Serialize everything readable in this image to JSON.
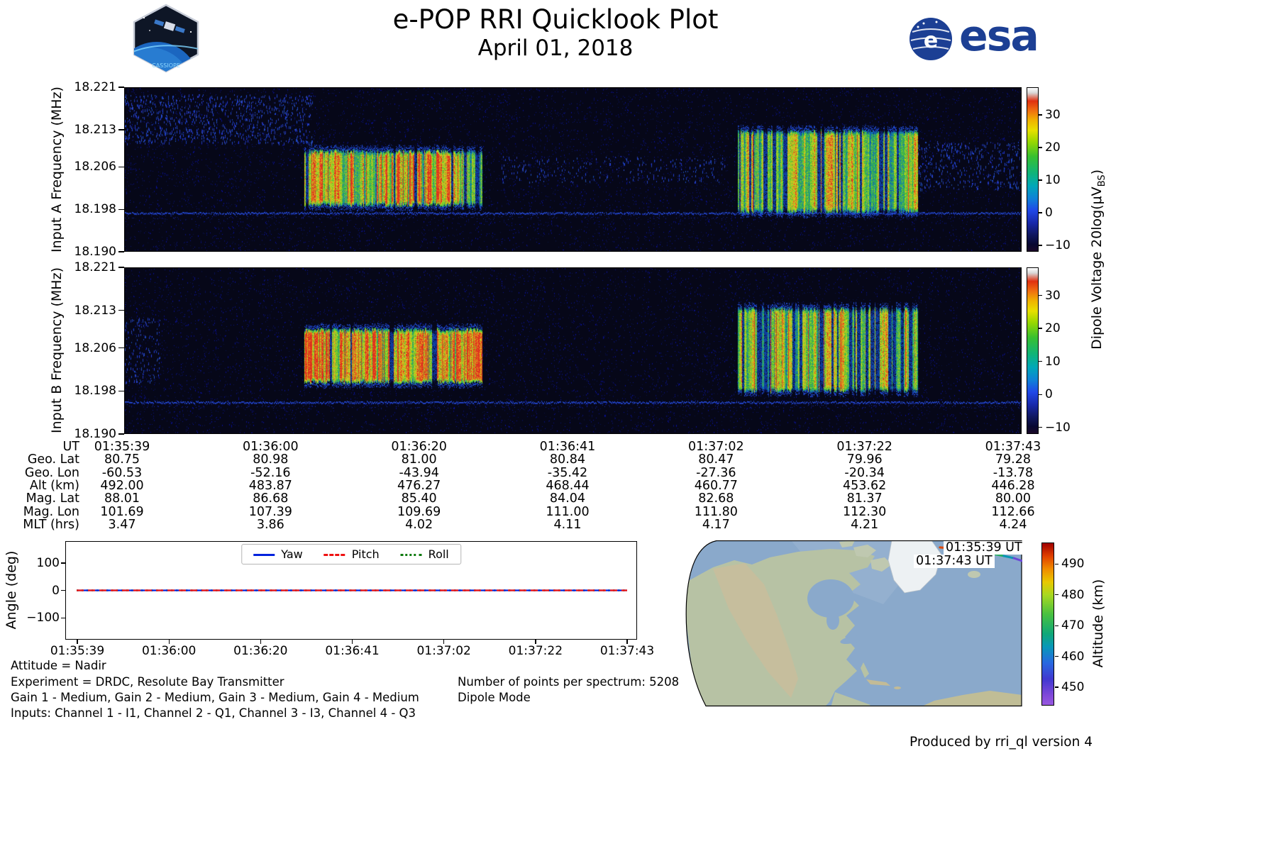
{
  "header": {
    "title": "e-POP RRI Quicklook Plot",
    "date": "April 01, 2018",
    "esa_wordmark": "esa",
    "patch_text": "CASSIOPE"
  },
  "chart_data": [
    {
      "id": "input_a_spectrogram",
      "type": "heatmap",
      "ylabel": "Input A Frequency (MHz)",
      "ylim": [
        18.19,
        18.221
      ],
      "ytick_values": [
        18.221,
        18.213,
        18.206,
        18.198,
        18.19
      ],
      "ytick_labels": [
        "18.221",
        "18.213",
        "18.206",
        "18.198",
        "18.190"
      ],
      "x_start_ut": "01:35:39",
      "x_end_ut": "01:37:43",
      "colorbar": {
        "label_prefix": "Dipole Voltage 20log(μV",
        "label_sub": "BS",
        "label_suffix": ")",
        "tick_values": [
          30,
          20,
          10,
          0,
          -10
        ],
        "tick_labels": [
          "30",
          "20",
          "10",
          "0",
          "−10"
        ],
        "value_range": [
          38.5,
          -12
        ],
        "gradient_stops": [
          [
            0,
            "#ffffff"
          ],
          [
            3,
            "#d8d8d8"
          ],
          [
            8,
            "#e03010"
          ],
          [
            14,
            "#f07010"
          ],
          [
            20,
            "#f0b400"
          ],
          [
            26,
            "#e8e000"
          ],
          [
            33,
            "#98d800"
          ],
          [
            42,
            "#38c030"
          ],
          [
            52,
            "#10b478"
          ],
          [
            60,
            "#00a8b8"
          ],
          [
            68,
            "#1080d8"
          ],
          [
            75,
            "#2048e8"
          ],
          [
            83,
            "#1828a8"
          ],
          [
            90,
            "#101860"
          ],
          [
            96,
            "#080830"
          ],
          [
            100,
            "#1a0828"
          ]
        ]
      },
      "features": {
        "background_db": -9,
        "noise_floor_line_mhz": 18.1972,
        "bursts": [
          {
            "ut": [
              "01:36:07",
              "01:36:30"
            ],
            "x": [
              0.2,
              0.399
            ],
            "f": [
              18.1987,
              18.2089
            ],
            "peak_db": 36,
            "level": 1.0,
            "red_frac": 0.18,
            "gap_frac": 0.12
          },
          {
            "ut": [
              "01:37:06",
              "01:37:30"
            ],
            "x": [
              0.684,
              0.885
            ],
            "f": [
              18.1974,
              18.2127
            ],
            "peak_db": 30,
            "level": 0.9,
            "red_frac": 0.04,
            "gap_frac": 0.3
          }
        ],
        "speckle_regions": [
          {
            "x": [
              0.0,
              0.21
            ],
            "y": [
              0.04,
              0.34
            ],
            "density": 0.1
          },
          {
            "x": [
              0.42,
              0.67
            ],
            "y": [
              0.42,
              0.58
            ],
            "density": 0.04
          },
          {
            "x": [
              0.885,
              1.0
            ],
            "y": [
              0.33,
              0.62
            ],
            "density": 0.08
          }
        ]
      }
    },
    {
      "id": "input_b_spectrogram",
      "type": "heatmap",
      "ylabel": "Input B Frequency (MHz)",
      "ylim": [
        18.19,
        18.221
      ],
      "ytick_values": [
        18.221,
        18.213,
        18.206,
        18.198,
        18.19
      ],
      "ytick_labels": [
        "18.221",
        "18.213",
        "18.206",
        "18.198",
        "18.190"
      ],
      "x_start_ut": "01:35:39",
      "x_end_ut": "01:37:43",
      "colorbar": {
        "label_prefix": "Dipole Voltage 20log(μV",
        "label_sub": "BS",
        "label_suffix": ")",
        "tick_values": [
          30,
          20,
          10,
          0,
          -10
        ],
        "tick_labels": [
          "30",
          "20",
          "10",
          "0",
          "−10"
        ],
        "value_range": [
          38.5,
          -12
        ],
        "gradient_stops": [
          [
            0,
            "#ffffff"
          ],
          [
            3,
            "#d8d8d8"
          ],
          [
            8,
            "#e03010"
          ],
          [
            14,
            "#f07010"
          ],
          [
            20,
            "#f0b400"
          ],
          [
            26,
            "#e8e000"
          ],
          [
            33,
            "#98d800"
          ],
          [
            42,
            "#38c030"
          ],
          [
            52,
            "#10b478"
          ],
          [
            60,
            "#00a8b8"
          ],
          [
            68,
            "#1080d8"
          ],
          [
            75,
            "#2048e8"
          ],
          [
            83,
            "#1828a8"
          ],
          [
            90,
            "#101860"
          ],
          [
            96,
            "#080830"
          ],
          [
            100,
            "#1a0828"
          ]
        ]
      },
      "features": {
        "background_db": -9,
        "noise_floor_line_mhz": 18.1958,
        "bursts": [
          {
            "ut": [
              "01:36:07",
              "01:36:30"
            ],
            "x": [
              0.2,
              0.399
            ],
            "f": [
              18.1995,
              18.2094
            ],
            "peak_db": 37,
            "level": 1.0,
            "red_frac": 0.3,
            "gap_frac": 0.1
          },
          {
            "ut": [
              "01:37:06",
              "01:37:30"
            ],
            "x": [
              0.684,
              0.885
            ],
            "f": [
              18.1979,
              18.2133
            ],
            "peak_db": 28,
            "level": 0.85,
            "red_frac": 0.06,
            "gap_frac": 0.5
          }
        ],
        "speckle_regions": [
          {
            "x": [
              0.0,
              0.04
            ],
            "y": [
              0.3,
              0.7
            ],
            "density": 0.06
          }
        ]
      }
    },
    {
      "id": "attitude_angles",
      "type": "line",
      "ylabel": "Angle (deg)",
      "ylim": [
        -180,
        180
      ],
      "ytick_values": [
        100,
        0,
        -100
      ],
      "ytick_labels": [
        "100",
        "0",
        "−100"
      ],
      "x_tick_labels": [
        "01:35:39",
        "01:36:00",
        "01:36:20",
        "01:36:41",
        "01:37:02",
        "01:37:22",
        "01:37:43"
      ],
      "legend_position": "upper center",
      "series": [
        {
          "name": "Yaw",
          "color": "#0022dd",
          "line_style": "solid",
          "values": [
            0,
            0,
            0,
            0,
            0,
            0,
            0
          ]
        },
        {
          "name": "Pitch",
          "color": "#ee1111",
          "line_style": "dashed",
          "values": [
            0,
            0,
            0,
            0,
            0,
            0,
            0
          ]
        },
        {
          "name": "Roll",
          "color": "#0e7a0e",
          "line_style": "dotted",
          "values": [
            0,
            0,
            0,
            0,
            0,
            0,
            0
          ]
        }
      ]
    },
    {
      "id": "ephemeris_table",
      "type": "table",
      "rows": [
        {
          "label": "UT",
          "values": [
            "01:35:39",
            "01:36:00",
            "01:36:20",
            "01:36:41",
            "01:37:02",
            "01:37:22",
            "01:37:43"
          ]
        },
        {
          "label": "Geo. Lat",
          "values": [
            "80.75",
            "80.98",
            "81.00",
            "80.84",
            "80.47",
            "79.96",
            "79.28"
          ]
        },
        {
          "label": "Geo. Lon",
          "values": [
            "-60.53",
            "-52.16",
            "-43.94",
            "-35.42",
            "-27.36",
            "-20.34",
            "-13.78"
          ]
        },
        {
          "label": "Alt (km)",
          "values": [
            "492.00",
            "483.87",
            "476.27",
            "468.44",
            "460.77",
            "453.62",
            "446.28"
          ]
        },
        {
          "label": "Mag. Lat",
          "values": [
            "88.01",
            "86.68",
            "85.40",
            "84.04",
            "82.68",
            "81.37",
            "80.00"
          ]
        },
        {
          "label": "Mag. Lon",
          "values": [
            "101.69",
            "107.39",
            "109.69",
            "111.00",
            "111.80",
            "112.30",
            "112.66"
          ]
        },
        {
          "label": "MLT (hrs)",
          "values": [
            "3.47",
            "3.86",
            "4.02",
            "4.11",
            "4.17",
            "4.21",
            "4.24"
          ]
        }
      ]
    },
    {
      "id": "ground_track_map",
      "type": "map",
      "region": "North America / North Atlantic",
      "track": {
        "start_label": "01:35:39 UT",
        "end_label": "01:37:43 UT",
        "start_alt_km": 492.0,
        "end_alt_km": 446.28,
        "path_frac": [
          [
            0.756,
            0.042
          ],
          [
            0.805,
            0.051
          ],
          [
            0.853,
            0.064
          ],
          [
            0.901,
            0.076
          ],
          [
            0.945,
            0.093
          ],
          [
            0.975,
            0.106
          ],
          [
            1.0,
            0.123
          ]
        ],
        "segment_colors": [
          "#e04800",
          "#e8b400",
          "#8cc820",
          "#28b060",
          "#0896b4",
          "#6a48d8"
        ]
      },
      "altitude_colorbar": {
        "label": "Altitude (km)",
        "tick_values": [
          490,
          480,
          470,
          460,
          450
        ],
        "tick_labels": [
          "490",
          "480",
          "470",
          "460",
          "450"
        ],
        "value_range": [
          497,
          444
        ],
        "gradient_stops": [
          [
            0,
            "#a00000"
          ],
          [
            8,
            "#e04000"
          ],
          [
            16,
            "#f08c00"
          ],
          [
            24,
            "#e8c800"
          ],
          [
            32,
            "#a8d820"
          ],
          [
            44,
            "#48c040"
          ],
          [
            56,
            "#10a878"
          ],
          [
            64,
            "#0898b8"
          ],
          [
            74,
            "#2868e0"
          ],
          [
            84,
            "#4038d0"
          ],
          [
            94,
            "#8048d8"
          ],
          [
            100,
            "#9858e0"
          ]
        ]
      }
    }
  ],
  "annotations": {
    "attitude": "Attitude = Nadir",
    "experiment": "Experiment = DRDC, Resolute Bay Transmitter",
    "gains": "Gain 1 - Medium, Gain 2 - Medium, Gain 3 - Medium, Gain 4 - Medium",
    "inputs": "Inputs: Channel 1 - I1, Channel 2 - Q1, Channel 3 - I3, Channel 4 - Q3",
    "points_per_spectrum": "Number of points per spectrum: 5208",
    "mode": "Dipole Mode"
  },
  "footer": {
    "credit": "Produced by rri_ql version 4"
  }
}
